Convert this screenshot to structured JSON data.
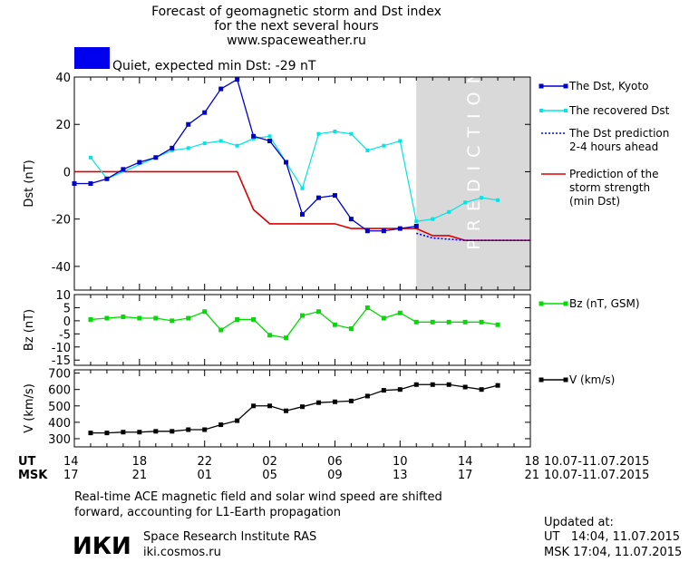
{
  "header": {
    "line1": "Forecast of geomagnetic storm and Dst index",
    "line2": "for the next several hours",
    "line3": "www.spaceweather.ru",
    "status_text": "Quiet, expected min Dst: -29 nT",
    "status_color": "#0000ee"
  },
  "colors": {
    "dst_kyoto": "#0000cc",
    "recovered": "#00e5e5",
    "prediction_dotted": "#0000ff",
    "storm_strength": "#dd0000",
    "bz": "#00dd00",
    "v": "#000000",
    "prediction_band": "#d9d9d9"
  },
  "chart_data": [
    {
      "type": "line",
      "panel": "dst",
      "ylabel": "Dst (nT)",
      "ylim": [
        -50,
        40
      ],
      "yticks": [
        40,
        20,
        0,
        -20,
        -40
      ],
      "xlim": [
        14,
        42
      ],
      "band_label": "PREDICTION",
      "band_start": 35,
      "series": [
        {
          "name": "The Dst, Kyoto",
          "x": [
            14,
            15,
            16,
            17,
            18,
            19,
            20,
            21,
            22,
            23,
            24,
            25,
            26,
            27,
            28,
            29,
            30,
            31,
            32,
            33,
            34,
            35
          ],
          "y": [
            -5,
            -5,
            -3,
            1,
            4,
            6,
            10,
            20,
            25,
            35,
            39,
            15,
            13,
            4,
            -18,
            -11,
            -10,
            -20,
            -25,
            -25,
            -24,
            -23
          ]
        },
        {
          "name": "The recovered Dst",
          "x": [
            15,
            16,
            20,
            21,
            22,
            23,
            24,
            25,
            26,
            27,
            28,
            29,
            30,
            31,
            32,
            33,
            34,
            35,
            36,
            37,
            38,
            39,
            40
          ],
          "y": [
            6,
            -3,
            9,
            10,
            12,
            13,
            11,
            14,
            15,
            4,
            -7,
            16,
            17,
            16,
            9,
            11,
            13,
            -21,
            -20,
            -17,
            -13,
            -11,
            -12
          ]
        },
        {
          "name": "The Dst prediction\n2-4 hours ahead",
          "x": [
            35,
            36,
            38,
            42
          ],
          "y": [
            -26,
            -28,
            -29,
            -29
          ]
        },
        {
          "name": "Prediction of the\nstorm strength\n(min Dst)",
          "x": [
            14,
            24,
            25,
            26,
            27,
            28,
            29,
            30,
            31,
            32,
            33,
            34,
            35,
            36,
            37,
            38,
            42
          ],
          "y": [
            0,
            0,
            -16,
            -22,
            -22,
            -22,
            -22,
            -22,
            -24,
            -24,
            -24,
            -24,
            -24,
            -27,
            -27,
            -29,
            -29
          ]
        }
      ]
    },
    {
      "type": "line",
      "panel": "bz",
      "ylabel": "Bz (nT)",
      "ylim": [
        -17,
        10
      ],
      "yticks": [
        10,
        5,
        0,
        -5,
        -10,
        -15
      ],
      "xlim": [
        14,
        42
      ],
      "series": [
        {
          "name": "Bz (nT, GSM)",
          "x": [
            15,
            16,
            17,
            18,
            19,
            20,
            21,
            22,
            23,
            24,
            25,
            26,
            27,
            28,
            29,
            30,
            31,
            32,
            33,
            34,
            35,
            36,
            37,
            38,
            39,
            40
          ],
          "y": [
            0.5,
            1,
            1.5,
            1,
            1,
            0,
            1,
            3.5,
            -3.5,
            0.5,
            0.5,
            -5.5,
            -6.5,
            2,
            3.5,
            -1.5,
            -3,
            5,
            1,
            3,
            -0.5,
            -0.5,
            -0.5,
            -0.5,
            -0.5,
            -1.5
          ]
        }
      ]
    },
    {
      "type": "line",
      "panel": "v",
      "ylabel": "V (km/s)",
      "ylim": [
        250,
        720
      ],
      "yticks": [
        700,
        600,
        500,
        400,
        300
      ],
      "xlim": [
        14,
        42
      ],
      "series": [
        {
          "name": "V (km/s)",
          "x": [
            15,
            16,
            17,
            18,
            19,
            20,
            21,
            22,
            23,
            24,
            25,
            26,
            27,
            28,
            29,
            30,
            31,
            32,
            33,
            34,
            35,
            36,
            37,
            38,
            39,
            40
          ],
          "y": [
            335,
            335,
            340,
            340,
            345,
            345,
            355,
            355,
            385,
            410,
            500,
            500,
            470,
            495,
            520,
            525,
            530,
            560,
            595,
            600,
            630,
            630,
            630,
            615,
            600,
            625
          ]
        }
      ]
    }
  ],
  "x_axis": {
    "ut_label": "UT",
    "msk_label": "MSK",
    "positions": [
      14,
      18,
      22,
      26,
      30,
      34,
      38,
      42
    ],
    "ut_ticks": [
      "14",
      "18",
      "22",
      "02",
      "06",
      "10",
      "14",
      "18"
    ],
    "msk_ticks": [
      "17",
      "21",
      "01",
      "05",
      "09",
      "13",
      "17",
      "21"
    ],
    "date_range_ut": "10.07-11.07.2015",
    "date_range_msk": "10.07-11.07.2015"
  },
  "footer": {
    "note_line1": "Real-time ACE magnetic field and solar wind speed are shifted",
    "note_line2": "forward, accounting for L1-Earth propagation",
    "logo_text": "ИКИ",
    "institute": "Space Research Institute RAS",
    "site": "iki.cosmos.ru",
    "updated_label": "Updated at:",
    "updated_ut": "UT   14:04, 11.07.2015",
    "updated_msk": "MSK 17:04, 11.07.2015"
  }
}
